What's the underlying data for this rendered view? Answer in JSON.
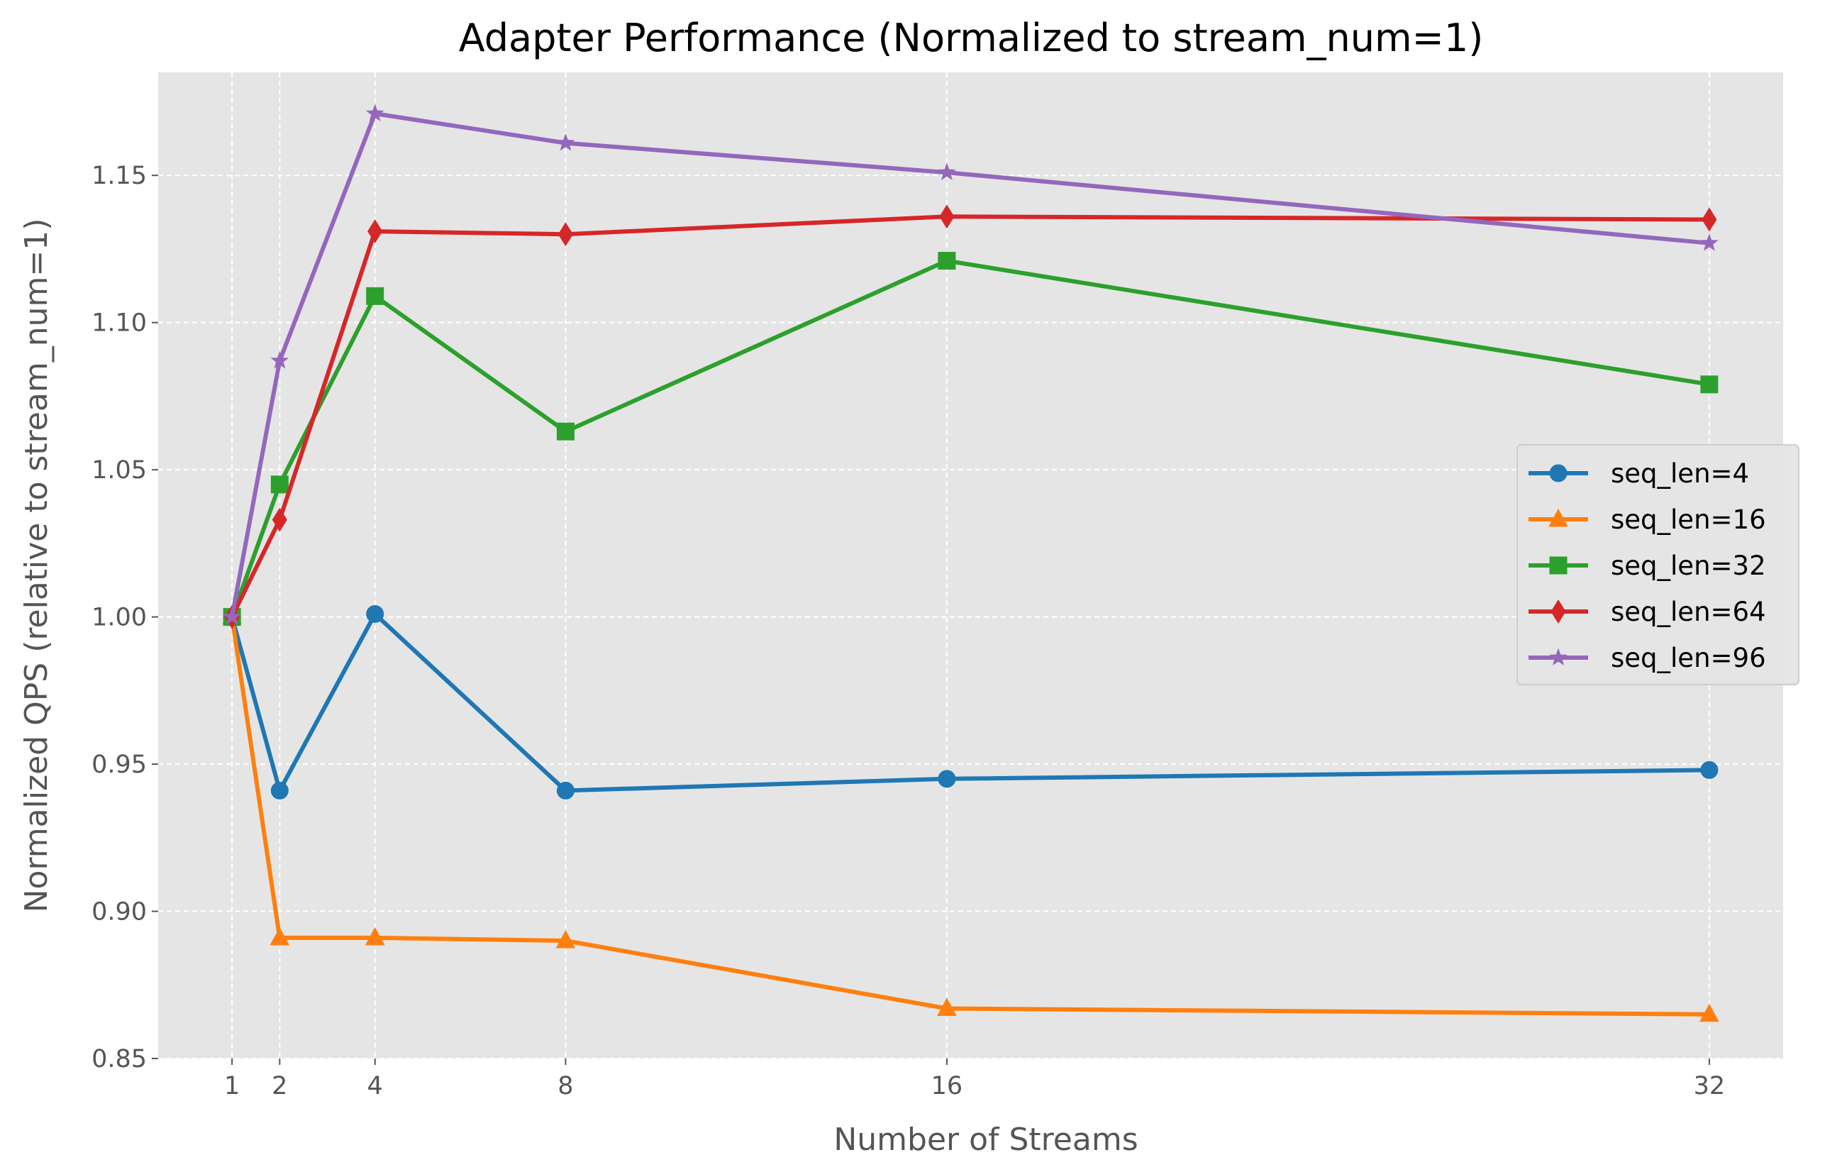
{
  "chart_data": {
    "type": "line",
    "title": "Adapter Performance (Normalized to stream_num=1)",
    "xlabel": "Number of Streams",
    "ylabel": "Normalized QPS (relative to stream_num=1)",
    "x": [
      1,
      2,
      4,
      8,
      16,
      32
    ],
    "x_ticks": [
      "1",
      "2",
      "4",
      "8",
      "16",
      "32"
    ],
    "xlim": [
      -0.55,
      33.55
    ],
    "y_ticks": [
      "0.85",
      "0.90",
      "0.95",
      "1.00",
      "1.05",
      "1.10",
      "1.15"
    ],
    "ylim": [
      0.85,
      1.185
    ],
    "grid": true,
    "legend_position": "center-right",
    "series": [
      {
        "name": "seq_len=4",
        "color": "#1f77b4",
        "marker": "circle",
        "values": [
          1.0,
          0.941,
          1.001,
          0.941,
          0.945,
          0.948
        ]
      },
      {
        "name": "seq_len=16",
        "color": "#ff7f0e",
        "marker": "triangle",
        "values": [
          1.0,
          0.891,
          0.891,
          0.89,
          0.867,
          0.865
        ]
      },
      {
        "name": "seq_len=32",
        "color": "#2ca02c",
        "marker": "square",
        "values": [
          1.0,
          1.045,
          1.109,
          1.063,
          1.121,
          1.079
        ]
      },
      {
        "name": "seq_len=64",
        "color": "#d62728",
        "marker": "diamond",
        "values": [
          1.0,
          1.033,
          1.131,
          1.13,
          1.136,
          1.135
        ]
      },
      {
        "name": "seq_len=96",
        "color": "#9467bd",
        "marker": "star",
        "values": [
          1.0,
          1.087,
          1.171,
          1.161,
          1.151,
          1.127
        ]
      }
    ]
  }
}
